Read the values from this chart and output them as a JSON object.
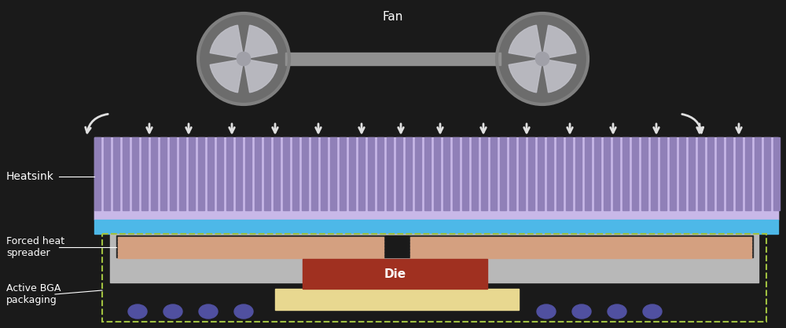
{
  "bg_color": "#1a1a1a",
  "text_color": "#ffffff",
  "heatsink_color": "#c8b8e8",
  "heatsink_fin_color": "#9080b8",
  "heatsink_base_color": "#c8b8e8",
  "blue_layer_color": "#4db8e8",
  "spreader_base_color": "#b8b8b8",
  "spreader_coil_color": "#d4a080",
  "spreader_dark_color": "#2a2a2a",
  "die_color": "#a03020",
  "die_label_color": "#ffffff",
  "substrate_color": "#e8d890",
  "bga_ball_color": "#5050a0",
  "arrow_color": "#e0e0e0",
  "dashed_box_color": "#a0c040",
  "fan_color": "#909090",
  "title": "Fan",
  "label_heatsink": "Heatsink",
  "label_spreader": "Forced heat\nspreader",
  "label_bga": "Active BGA\npackaging",
  "label_die": "Die",
  "figsize": [
    10.0,
    4.18
  ],
  "dpi": 100
}
